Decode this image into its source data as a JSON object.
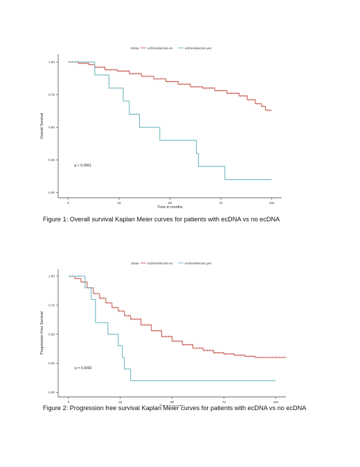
{
  "captions": {
    "figure1": "Figure 1: Overall survival Kaplan Meier curves for patients with ecDNA vs no ecDNA",
    "figure2": "Figure 2: Progression free survival Kaplan Meier curves for patients with ecDNA vs no ecDNA"
  },
  "colors": {
    "no": "#c9625a",
    "yes": "#6fb6bd",
    "axis": "#333333",
    "text": "#222222"
  },
  "chart_data": [
    {
      "type": "line",
      "legend_title": "Strata",
      "legend_position": "top",
      "xlabel": "Time in months",
      "ylabel": "Overall Survival",
      "xlim": [
        -5,
        105
      ],
      "ylim": [
        -0.04,
        1.06
      ],
      "xticks": [
        0,
        25,
        50,
        75,
        100
      ],
      "yticks": [
        0.0,
        0.25,
        0.5,
        0.75,
        1.0
      ],
      "ytick_labels": [
        "0.00",
        "0.25",
        "0.50",
        "0.75",
        "1.00"
      ],
      "grid": false,
      "annotation": "p < 0.0001",
      "annotation_at": [
        3,
        0.2
      ],
      "series": [
        {
          "name": "ecDNAdetected=no",
          "color_key": "no",
          "step": true,
          "censored": true,
          "x": [
            0,
            5,
            10,
            13,
            18,
            24,
            30,
            36,
            42,
            48,
            54,
            60,
            66,
            72,
            78,
            84,
            88,
            92,
            95,
            97,
            100
          ],
          "y": [
            1.0,
            0.99,
            0.98,
            0.96,
            0.94,
            0.93,
            0.91,
            0.89,
            0.87,
            0.85,
            0.83,
            0.81,
            0.8,
            0.78,
            0.76,
            0.74,
            0.71,
            0.68,
            0.66,
            0.63,
            0.63
          ]
        },
        {
          "name": "ecDNAdetected=yes",
          "color_key": "yes",
          "step": true,
          "censored": false,
          "x": [
            0,
            13,
            20,
            27,
            30,
            35,
            45,
            63,
            64,
            73,
            77,
            100
          ],
          "y": [
            1.0,
            0.9,
            0.8,
            0.7,
            0.6,
            0.5,
            0.4,
            0.3,
            0.2,
            0.2,
            0.1,
            0.1
          ]
        }
      ]
    },
    {
      "type": "line",
      "legend_title": "Strata",
      "legend_position": "top",
      "xlabel": "Time in months",
      "ylabel": "Progression Free Survival",
      "xlim": [
        -5,
        105
      ],
      "ylim": [
        -0.04,
        1.06
      ],
      "xticks": [
        0,
        25,
        50,
        75,
        100
      ],
      "yticks": [
        0.0,
        0.25,
        0.5,
        0.75,
        1.0
      ],
      "ytick_labels": [
        "0.00",
        "0.25",
        "0.50",
        "0.75",
        "1.00"
      ],
      "grid": false,
      "annotation": "p = 0.0082",
      "annotation_at": [
        3,
        0.2
      ],
      "series": [
        {
          "name": "ecDNAdetected=no",
          "color_key": "no",
          "step": true,
          "censored": true,
          "x": [
            0,
            3,
            6,
            9,
            12,
            15,
            18,
            21,
            24,
            27,
            30,
            35,
            40,
            45,
            50,
            55,
            60,
            65,
            70,
            75,
            80,
            85,
            90,
            100,
            105
          ],
          "y": [
            1.0,
            0.98,
            0.95,
            0.9,
            0.85,
            0.81,
            0.77,
            0.73,
            0.7,
            0.66,
            0.63,
            0.58,
            0.53,
            0.48,
            0.44,
            0.41,
            0.38,
            0.36,
            0.34,
            0.33,
            0.32,
            0.31,
            0.3,
            0.3,
            0.3
          ]
        },
        {
          "name": "ecDNAdetected=yes",
          "color_key": "yes",
          "step": true,
          "censored": false,
          "x": [
            0,
            8,
            11,
            13,
            19,
            24,
            26,
            27,
            28,
            30,
            100
          ],
          "y": [
            1.0,
            0.9,
            0.8,
            0.6,
            0.5,
            0.4,
            0.3,
            0.2,
            0.2,
            0.1,
            0.1
          ]
        }
      ]
    }
  ]
}
